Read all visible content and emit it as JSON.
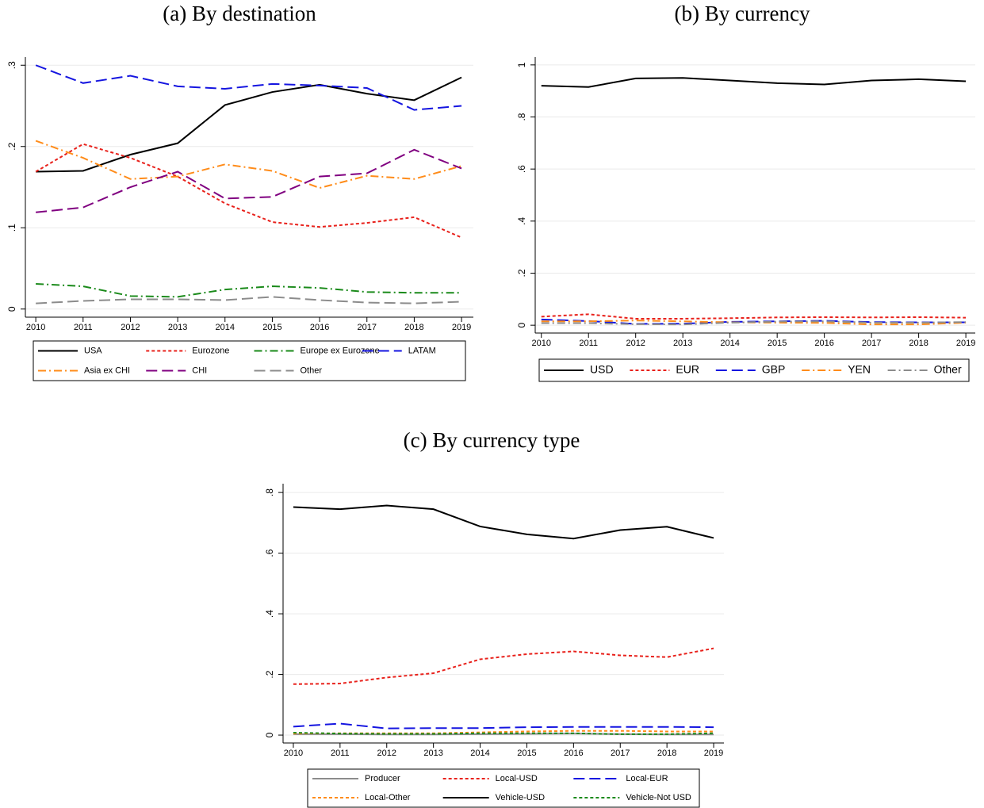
{
  "chart_data": [
    {
      "type": "line",
      "title": "(a) By destination",
      "x": [
        2010,
        2011,
        2012,
        2013,
        2014,
        2015,
        2016,
        2017,
        2018,
        2019
      ],
      "xlim": [
        2009.78,
        2019.25
      ],
      "xticks": [
        2010,
        2011,
        2012,
        2013,
        2014,
        2015,
        2016,
        2017,
        2018,
        2019
      ],
      "ylim": [
        -0.01,
        0.31
      ],
      "yticks": [
        0,
        {
          "value": 0.1,
          "label": ".1"
        },
        {
          "value": 0.2,
          "label": ".2"
        },
        {
          "value": 0.3,
          "label": ".3"
        }
      ],
      "grid": true,
      "legend": "bottom",
      "series": [
        {
          "name": "USA",
          "color": "#000000",
          "dash": "solid",
          "values": [
            0.169,
            0.17,
            0.19,
            0.204,
            0.251,
            0.267,
            0.276,
            0.265,
            0.257,
            0.285
          ]
        },
        {
          "name": "Eurozone",
          "color": "#e8211b",
          "dash": "dash",
          "values": [
            0.169,
            0.203,
            0.186,
            0.163,
            0.13,
            0.107,
            0.101,
            0.106,
            0.113,
            0.088
          ]
        },
        {
          "name": "Europe ex Eurozone",
          "color": "#1a8a1a",
          "dash": "dash-dot",
          "values": [
            0.031,
            0.028,
            0.016,
            0.015,
            0.024,
            0.028,
            0.026,
            0.021,
            0.02,
            0.02
          ]
        },
        {
          "name": "LATAM",
          "color": "#1515e0",
          "dash": "long-dash",
          "values": [
            0.3,
            0.278,
            0.287,
            0.274,
            0.271,
            0.277,
            0.275,
            0.272,
            0.245,
            0.25
          ]
        },
        {
          "name": "Asia ex CHI",
          "color": "#ff8c1a",
          "dash": "dash-dot",
          "values": [
            0.207,
            0.186,
            0.16,
            0.163,
            0.178,
            0.17,
            0.149,
            0.164,
            0.16,
            0.176
          ]
        },
        {
          "name": "CHI",
          "color": "#800080",
          "dash": "long-dash",
          "values": [
            0.119,
            0.125,
            0.15,
            0.169,
            0.136,
            0.138,
            0.163,
            0.167,
            0.196,
            0.173
          ]
        },
        {
          "name": "Other",
          "color": "#8c8c8c",
          "dash": "long-dash",
          "values": [
            0.007,
            0.01,
            0.012,
            0.012,
            0.011,
            0.015,
            0.011,
            0.008,
            0.007,
            0.009
          ]
        }
      ]
    },
    {
      "type": "line",
      "title": "(b) By currency",
      "x": [
        2010,
        2011,
        2012,
        2013,
        2014,
        2015,
        2016,
        2017,
        2018,
        2019
      ],
      "xlim": [
        2009.87,
        2019.2
      ],
      "xticks": [
        2010,
        2011,
        2012,
        2013,
        2014,
        2015,
        2016,
        2017,
        2018,
        2019
      ],
      "ylim": [
        -0.03,
        1.03
      ],
      "yticks": [
        0,
        {
          "value": 0.2,
          "label": ".2"
        },
        {
          "value": 0.4,
          "label": ".4"
        },
        {
          "value": 0.6,
          "label": ".6"
        },
        {
          "value": 0.8,
          "label": ".8"
        },
        1
      ],
      "grid": true,
      "legend": "bottom",
      "series": [
        {
          "name": "USD",
          "color": "#000000",
          "dash": "solid",
          "values": [
            0.92,
            0.915,
            0.948,
            0.95,
            0.94,
            0.93,
            0.925,
            0.94,
            0.945,
            0.937
          ]
        },
        {
          "name": "EUR",
          "color": "#e8211b",
          "dash": "dash",
          "values": [
            0.033,
            0.042,
            0.025,
            0.025,
            0.027,
            0.03,
            0.031,
            0.03,
            0.031,
            0.029
          ]
        },
        {
          "name": "GBP",
          "color": "#1515e0",
          "dash": "long-dash",
          "values": [
            0.022,
            0.016,
            0.005,
            0.006,
            0.013,
            0.015,
            0.017,
            0.012,
            0.011,
            0.011
          ]
        },
        {
          "name": "YEN",
          "color": "#ff8c1a",
          "dash": "dash-dot",
          "values": [
            0.015,
            0.015,
            0.018,
            0.015,
            0.011,
            0.01,
            0.009,
            0.003,
            0.003,
            0.01
          ]
        },
        {
          "name": "Other",
          "color": "#8c8c8c",
          "dash": "dash-dot",
          "values": [
            0.008,
            0.008,
            0.004,
            0.003,
            0.01,
            0.014,
            0.015,
            0.01,
            0.01,
            0.012
          ]
        }
      ]
    },
    {
      "type": "line",
      "title": "(c) By currency type",
      "x": [
        2010,
        2011,
        2012,
        2013,
        2014,
        2015,
        2016,
        2017,
        2018,
        2019
      ],
      "xlim": [
        2009.78,
        2019.22
      ],
      "xticks": [
        2010,
        2011,
        2012,
        2013,
        2014,
        2015,
        2016,
        2017,
        2018,
        2019
      ],
      "ylim": [
        -0.026,
        0.829
      ],
      "yticks": [
        0,
        {
          "value": 0.2,
          "label": ".2"
        },
        {
          "value": 0.4,
          "label": ".4"
        },
        {
          "value": 0.6,
          "label": ".6"
        },
        {
          "value": 0.8,
          "label": ".8"
        }
      ],
      "grid": true,
      "legend": "bottom",
      "series": [
        {
          "name": "Producer",
          "color": "#8c8c8c",
          "dash": "solid",
          "values": [
            0.003,
            0.003,
            0.002,
            0.002,
            0.003,
            0.004,
            0.005,
            0.003,
            0.002,
            0.002
          ]
        },
        {
          "name": "Local-USD",
          "color": "#e8211b",
          "dash": "dash",
          "values": [
            0.168,
            0.17,
            0.19,
            0.204,
            0.25,
            0.267,
            0.276,
            0.263,
            0.257,
            0.286
          ]
        },
        {
          "name": "Local-EUR",
          "color": "#1515e0",
          "dash": "long-dash",
          "values": [
            0.028,
            0.038,
            0.022,
            0.023,
            0.023,
            0.026,
            0.027,
            0.027,
            0.027,
            0.026
          ]
        },
        {
          "name": "Local-Other",
          "color": "#ff8c1a",
          "dash": "dash",
          "values": [
            0.005,
            0.006,
            0.006,
            0.006,
            0.009,
            0.012,
            0.014,
            0.014,
            0.012,
            0.012
          ]
        },
        {
          "name": "Vehicle-USD",
          "color": "#000000",
          "dash": "solid",
          "values": [
            0.752,
            0.745,
            0.757,
            0.745,
            0.688,
            0.662,
            0.648,
            0.676,
            0.687,
            0.65
          ]
        },
        {
          "name": "Vehicle-Not USD",
          "color": "#1a8a1a",
          "dash": "dash",
          "values": [
            0.008,
            0.005,
            0.004,
            0.004,
            0.006,
            0.006,
            0.006,
            0.003,
            0.003,
            0.006
          ]
        }
      ]
    }
  ]
}
